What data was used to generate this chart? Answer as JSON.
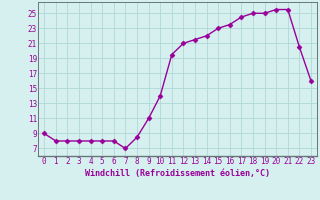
{
  "x": [
    0,
    1,
    2,
    3,
    4,
    5,
    6,
    7,
    8,
    9,
    10,
    11,
    12,
    13,
    14,
    15,
    16,
    17,
    18,
    19,
    20,
    21,
    22,
    23
  ],
  "y": [
    9,
    8,
    8,
    8,
    8,
    8,
    8,
    7,
    8.5,
    11,
    14,
    19.5,
    21,
    21.5,
    22,
    23,
    23.5,
    24.5,
    25,
    25,
    25.5,
    25.5,
    20.5,
    16
  ],
  "line_color": "#990099",
  "marker": "D",
  "marker_size": 2.5,
  "line_width": 1,
  "bg_color": "#d6f0f0",
  "grid_color": "#b0d8d8",
  "xlabel": "Windchill (Refroidissement éolien,°C)",
  "xlabel_fontsize": 6,
  "ylabel_ticks": [
    7,
    9,
    11,
    13,
    15,
    17,
    19,
    21,
    23,
    25
  ],
  "ylim": [
    6.0,
    26.5
  ],
  "xlim": [
    -0.5,
    23.5
  ],
  "xtick_labels": [
    "0",
    "1",
    "2",
    "3",
    "4",
    "5",
    "6",
    "7",
    "8",
    "9",
    "10",
    "11",
    "12",
    "13",
    "14",
    "15",
    "16",
    "17",
    "18",
    "19",
    "20",
    "21",
    "22",
    "23"
  ],
  "tick_fontsize": 5.5,
  "tick_color": "#990099"
}
